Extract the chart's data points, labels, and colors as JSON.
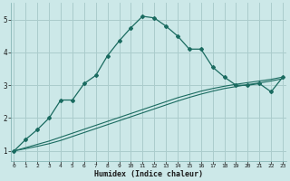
{
  "xlabel": "Humidex (Indice chaleur)",
  "bg_color": "#cce8e8",
  "line_color": "#1a6b60",
  "grid_color": "#aacccc",
  "x_data": [
    0,
    1,
    2,
    3,
    4,
    5,
    6,
    7,
    8,
    9,
    10,
    11,
    12,
    13,
    14,
    15,
    16,
    17,
    18,
    19,
    20,
    21,
    22,
    23
  ],
  "y_curve": [
    1.0,
    1.35,
    1.65,
    2.0,
    2.55,
    2.55,
    3.05,
    3.3,
    3.9,
    4.35,
    4.75,
    5.1,
    5.05,
    4.8,
    4.5,
    4.1,
    4.1,
    3.55,
    3.25,
    3.0,
    3.0,
    3.05,
    2.8,
    3.25
  ],
  "y_line1": [
    1.0,
    1.1,
    1.2,
    1.3,
    1.42,
    1.54,
    1.66,
    1.78,
    1.9,
    2.02,
    2.14,
    2.26,
    2.38,
    2.5,
    2.62,
    2.72,
    2.82,
    2.9,
    2.97,
    3.03,
    3.08,
    3.13,
    3.18,
    3.25
  ],
  "y_line2": [
    1.0,
    1.07,
    1.14,
    1.22,
    1.32,
    1.44,
    1.56,
    1.68,
    1.8,
    1.92,
    2.04,
    2.16,
    2.28,
    2.4,
    2.52,
    2.63,
    2.73,
    2.82,
    2.9,
    2.96,
    3.02,
    3.07,
    3.13,
    3.2
  ],
  "ylim": [
    0.7,
    5.5
  ],
  "xlim": [
    -0.3,
    23.3
  ],
  "yticks": [
    1,
    2,
    3,
    4,
    5
  ],
  "xticks": [
    0,
    1,
    2,
    3,
    4,
    5,
    6,
    7,
    8,
    9,
    10,
    11,
    12,
    13,
    14,
    15,
    16,
    17,
    18,
    19,
    20,
    21,
    22,
    23
  ]
}
